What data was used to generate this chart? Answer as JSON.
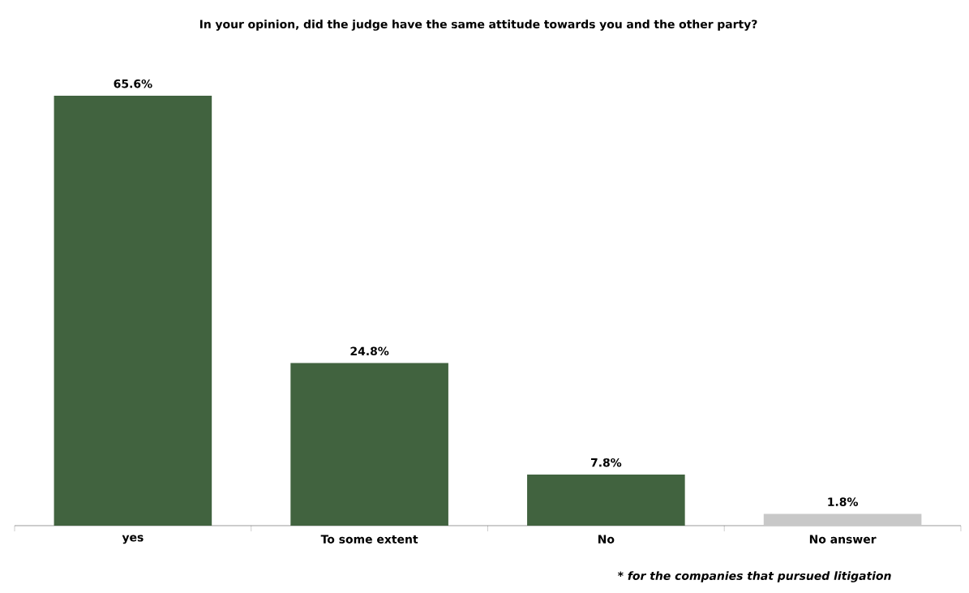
{
  "chart_data": {
    "type": "bar",
    "title": "In your opinion, did the judge have the same attitude towards you and the other party?",
    "categories": [
      "yes",
      "To some extent",
      "No",
      "No answer"
    ],
    "values": [
      65.6,
      24.8,
      7.8,
      1.8
    ],
    "colors": [
      "#41633f",
      "#41633f",
      "#41633f",
      "#c8c8c8"
    ],
    "data_labels": true,
    "value_labels": [
      "65.6%",
      "24.8%",
      "7.8%",
      "1.8%"
    ],
    "annotations": [
      "* for the companies that pursued litigation"
    ]
  }
}
